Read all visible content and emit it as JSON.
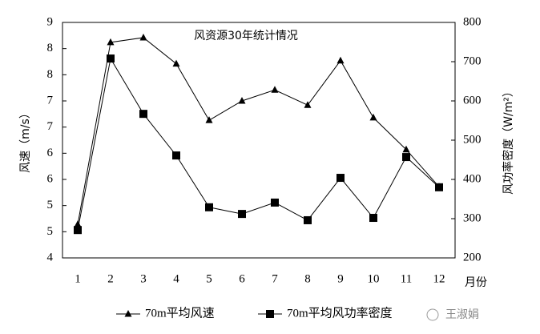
{
  "chart_data": {
    "type": "line",
    "title": "风资源30年统计情况",
    "x_label": "月份",
    "y_label": "风速（m/s）",
    "y2_label": "风功率密度（W/m²）",
    "categories": [
      "1",
      "2",
      "3",
      "4",
      "5",
      "6",
      "7",
      "8",
      "9",
      "10",
      "11",
      "12"
    ],
    "ylim": [
      4,
      8.5
    ],
    "yticks": [
      4,
      {
        "value": 4.5,
        "label": "5"
      },
      5,
      {
        "value": 5.5,
        "label": "6"
      },
      6,
      {
        "value": 6.5,
        "label": "7"
      },
      7,
      {
        "value": 7.5,
        "label": "8"
      },
      8,
      {
        "value": 8.5,
        "label": "9"
      }
    ],
    "y2lim": [
      200,
      800
    ],
    "y2ticks": [
      200,
      300,
      400,
      500,
      600,
      700,
      800
    ],
    "series": [
      {
        "name": "70m平均风速",
        "color": "#000000",
        "marker": "triangle",
        "values": [
          4.64,
          8.12,
          8.21,
          7.71,
          6.63,
          7.0,
          7.21,
          6.92,
          7.77,
          6.68,
          6.07,
          5.36
        ]
      },
      {
        "name": "70m平均风功率密度",
        "color": "#000000",
        "marker": "square",
        "axis": "y2",
        "values": [
          271,
          708,
          567,
          461,
          329,
          312,
          341,
          296,
          404,
          302,
          457,
          380
        ]
      }
    ],
    "legend": "bottom",
    "watermark": "王淑娟"
  }
}
